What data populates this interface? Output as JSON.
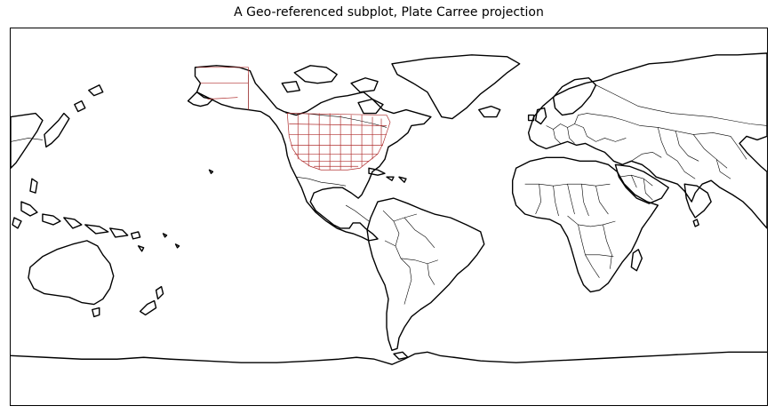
{
  "figure": {
    "title": "A Geo-referenced subplot, Plate Carree projection"
  },
  "map": {
    "projection": "Plate Carree",
    "central_longitude": -150,
    "coastline_color": "#000000",
    "country_border_color": "#000000",
    "state_border_color": "#b03030",
    "background_color": "#ffffff",
    "features": [
      "coastlines",
      "country-borders",
      "us-state-borders"
    ]
  }
}
